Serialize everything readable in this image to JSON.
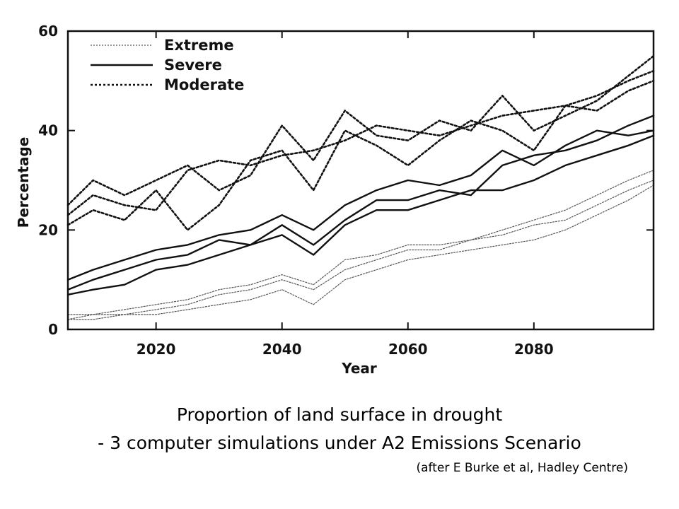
{
  "chart_data": {
    "type": "line",
    "title": "",
    "xlabel": "Year",
    "ylabel": "Percentage",
    "xlim": [
      2006,
      2099
    ],
    "ylim": [
      0,
      60
    ],
    "xticks": [
      2020,
      2040,
      2060,
      2080
    ],
    "yticks": [
      0,
      20,
      40,
      60
    ],
    "grid": false,
    "legend_position": "top-left",
    "legend": [
      {
        "label": "Extreme",
        "style": "dotted-thin"
      },
      {
        "label": "Severe",
        "style": "solid"
      },
      {
        "label": "Moderate",
        "style": "dashed"
      }
    ],
    "x": [
      2006,
      2010,
      2015,
      2020,
      2025,
      2030,
      2035,
      2040,
      2045,
      2050,
      2055,
      2060,
      2065,
      2070,
      2075,
      2080,
      2085,
      2090,
      2095,
      2099
    ],
    "series": [
      {
        "category": "Moderate",
        "run": 1,
        "style": "dashed",
        "values": [
          23,
          27,
          25,
          24,
          32,
          34,
          33,
          35,
          36,
          38,
          41,
          40,
          39,
          41,
          43,
          44,
          45,
          47,
          50,
          52
        ]
      },
      {
        "category": "Moderate",
        "run": 2,
        "style": "dashed",
        "values": [
          25,
          30,
          27,
          30,
          33,
          28,
          31,
          41,
          34,
          44,
          39,
          38,
          42,
          40,
          47,
          40,
          43,
          46,
          51,
          55
        ]
      },
      {
        "category": "Moderate",
        "run": 3,
        "style": "dashed",
        "values": [
          21,
          24,
          22,
          28,
          20,
          25,
          34,
          36,
          28,
          40,
          37,
          33,
          38,
          42,
          40,
          36,
          45,
          44,
          48,
          50
        ]
      },
      {
        "category": "Severe",
        "run": 1,
        "style": "solid",
        "values": [
          8,
          10,
          12,
          14,
          15,
          18,
          17,
          21,
          17,
          22,
          26,
          26,
          28,
          27,
          33,
          35,
          36,
          38,
          41,
          43
        ]
      },
      {
        "category": "Severe",
        "run": 2,
        "style": "solid",
        "values": [
          10,
          12,
          14,
          16,
          17,
          19,
          20,
          23,
          20,
          25,
          28,
          30,
          29,
          31,
          36,
          33,
          37,
          40,
          39,
          40
        ]
      },
      {
        "category": "Severe",
        "run": 3,
        "style": "solid",
        "values": [
          7,
          8,
          9,
          12,
          13,
          15,
          17,
          19,
          15,
          21,
          24,
          24,
          26,
          28,
          28,
          30,
          33,
          35,
          37,
          39
        ]
      },
      {
        "category": "Extreme",
        "run": 1,
        "style": "dotted-thin",
        "values": [
          3,
          3,
          4,
          5,
          6,
          8,
          9,
          11,
          9,
          14,
          15,
          17,
          17,
          18,
          20,
          22,
          24,
          27,
          30,
          32
        ]
      },
      {
        "category": "Extreme",
        "run": 2,
        "style": "dotted-thin",
        "values": [
          2,
          3,
          3,
          4,
          5,
          7,
          8,
          10,
          8,
          12,
          14,
          16,
          16,
          18,
          19,
          21,
          22,
          25,
          28,
          30
        ]
      },
      {
        "category": "Extreme",
        "run": 3,
        "style": "dotted-thin",
        "values": [
          2,
          2,
          3,
          3,
          4,
          5,
          6,
          8,
          5,
          10,
          12,
          14,
          15,
          16,
          17,
          18,
          20,
          23,
          26,
          29
        ]
      }
    ]
  },
  "caption": {
    "line1": "Proportion of land surface in drought",
    "line2": "- 3 computer simulations under A2 Emissions Scenario",
    "credit": "(after E Burke et al, Hadley Centre)"
  },
  "colors": {
    "line": "#111111",
    "extreme_line": "#555555",
    "frame": "#111111",
    "background": "#ffffff"
  }
}
